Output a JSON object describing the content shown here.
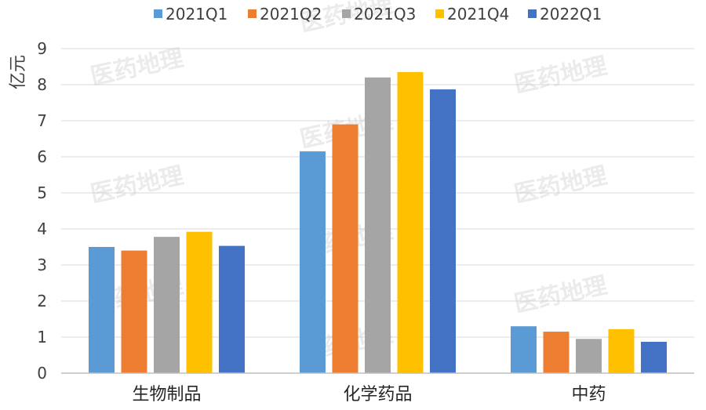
{
  "chart_data": {
    "type": "bar",
    "title": "",
    "xlabel": "",
    "ylabel": "亿元",
    "ylim": [
      0,
      9
    ],
    "yticks": [
      "0",
      "1",
      "2",
      "3",
      "4",
      "5",
      "6",
      "7",
      "8",
      "9"
    ],
    "grid": true,
    "legend_position": "top",
    "categories": [
      "生物制品",
      "化学药品",
      "中药"
    ],
    "series": [
      {
        "name": "2021Q1",
        "color": "#5b9bd5",
        "values": [
          3.5,
          6.15,
          1.3
        ]
      },
      {
        "name": "2021Q2",
        "color": "#ed7d31",
        "values": [
          3.4,
          6.9,
          1.15
        ]
      },
      {
        "name": "2021Q3",
        "color": "#a5a5a5",
        "values": [
          3.78,
          8.2,
          0.95
        ]
      },
      {
        "name": "2021Q4",
        "color": "#ffc000",
        "values": [
          3.92,
          8.35,
          1.22
        ]
      },
      {
        "name": "2022Q1",
        "color": "#4472c4",
        "values": [
          3.53,
          7.87,
          0.87
        ]
      }
    ]
  },
  "watermark": {
    "text": "医药地理"
  }
}
